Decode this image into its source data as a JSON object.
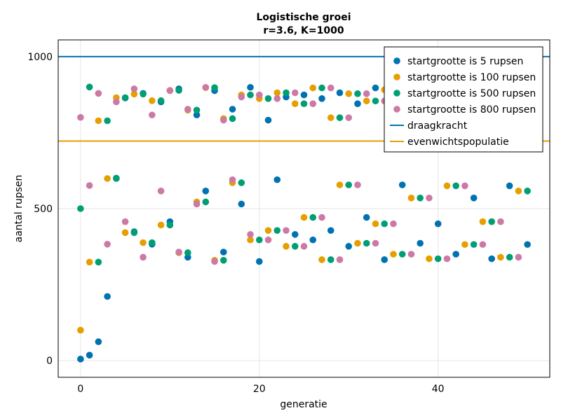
{
  "chart_data": {
    "type": "scatter",
    "title": "Logistische groei",
    "subtitle": "r=3.6, K=1000",
    "xlabel": "generatie",
    "ylabel": "aantal rupsen",
    "xlim": [
      -2.5,
      52.5
    ],
    "ylim": [
      -55,
      1055
    ],
    "xticks": [
      "0",
      "20",
      "40"
    ],
    "xtick_values": [
      0,
      20,
      40
    ],
    "yticks": [
      "0",
      "500",
      "1000"
    ],
    "ytick_values": [
      0,
      500,
      1000
    ],
    "grid": true,
    "legend_position": "top-right",
    "x": [
      0,
      1,
      2,
      3,
      4,
      5,
      6,
      7,
      8,
      9,
      10,
      11,
      12,
      13,
      14,
      15,
      16,
      17,
      18,
      19,
      20,
      21,
      22,
      23,
      24,
      25,
      26,
      27,
      28,
      29,
      30,
      31,
      32,
      33,
      34,
      35,
      36,
      37,
      38,
      39,
      40,
      41,
      42,
      43,
      44,
      45,
      46,
      47,
      48,
      49,
      50
    ],
    "series": [
      {
        "name": "startgrootte is 5 rupsen",
        "color": "#0072B2",
        "values": [
          5,
          18,
          62,
          211,
          600,
          864,
          424,
          879,
          383,
          851,
          457,
          894,
          340,
          808,
          558,
          888,
          357,
          827,
          515,
          899,
          326,
          791,
          595,
          867,
          415,
          874,
          397,
          862,
          428,
          881,
          376,
          845,
          471,
          897,
          332,
          799,
          578,
          878,
          386,
          854,
          450,
          891,
          350,
          819,
          535,
          896,
          335,
          801,
          575,
          880,
          382
        ]
      },
      {
        "name": "startgrootte is 100 rupsen",
        "color": "#E69F00",
        "values": [
          100,
          324,
          789,
          599,
          865,
          421,
          877,
          388,
          855,
          446,
          889,
          355,
          824,
          522,
          898,
          330,
          796,
          585,
          874,
          397,
          862,
          428,
          881,
          376,
          845,
          471,
          897,
          332,
          799,
          578,
          878,
          386,
          854,
          450,
          891,
          350,
          819,
          535,
          896,
          335,
          801,
          575,
          880,
          382,
          851,
          457,
          894,
          340,
          808,
          558,
          888
        ]
      },
      {
        "name": "startgrootte is 500 rupsen",
        "color": "#009E73",
        "values": [
          500,
          900,
          324,
          789,
          599,
          865,
          421,
          877,
          388,
          855,
          446,
          889,
          355,
          824,
          522,
          898,
          330,
          796,
          585,
          874,
          397,
          862,
          428,
          881,
          376,
          845,
          471,
          897,
          332,
          799,
          578,
          878,
          386,
          854,
          450,
          891,
          350,
          819,
          535,
          896,
          335,
          801,
          575,
          880,
          382,
          851,
          457,
          894,
          340,
          808,
          558
        ]
      },
      {
        "name": "startgrootte is 800 rupsen",
        "color": "#CC79A7",
        "values": [
          800,
          576,
          879,
          383,
          851,
          457,
          894,
          340,
          808,
          558,
          888,
          357,
          827,
          515,
          899,
          326,
          791,
          595,
          867,
          415,
          874,
          397,
          862,
          428,
          881,
          376,
          845,
          471,
          897,
          332,
          799,
          578,
          878,
          386,
          854,
          450,
          891,
          350,
          819,
          535,
          896,
          335,
          801,
          575,
          880,
          382,
          851,
          457,
          894,
          340,
          808
        ]
      }
    ],
    "hlines": [
      {
        "name": "draagkracht",
        "value": 1000,
        "color": "#0072B2"
      },
      {
        "name": "evenwichtspopulatie",
        "value": 722.2,
        "color": "#E69F00"
      }
    ]
  }
}
